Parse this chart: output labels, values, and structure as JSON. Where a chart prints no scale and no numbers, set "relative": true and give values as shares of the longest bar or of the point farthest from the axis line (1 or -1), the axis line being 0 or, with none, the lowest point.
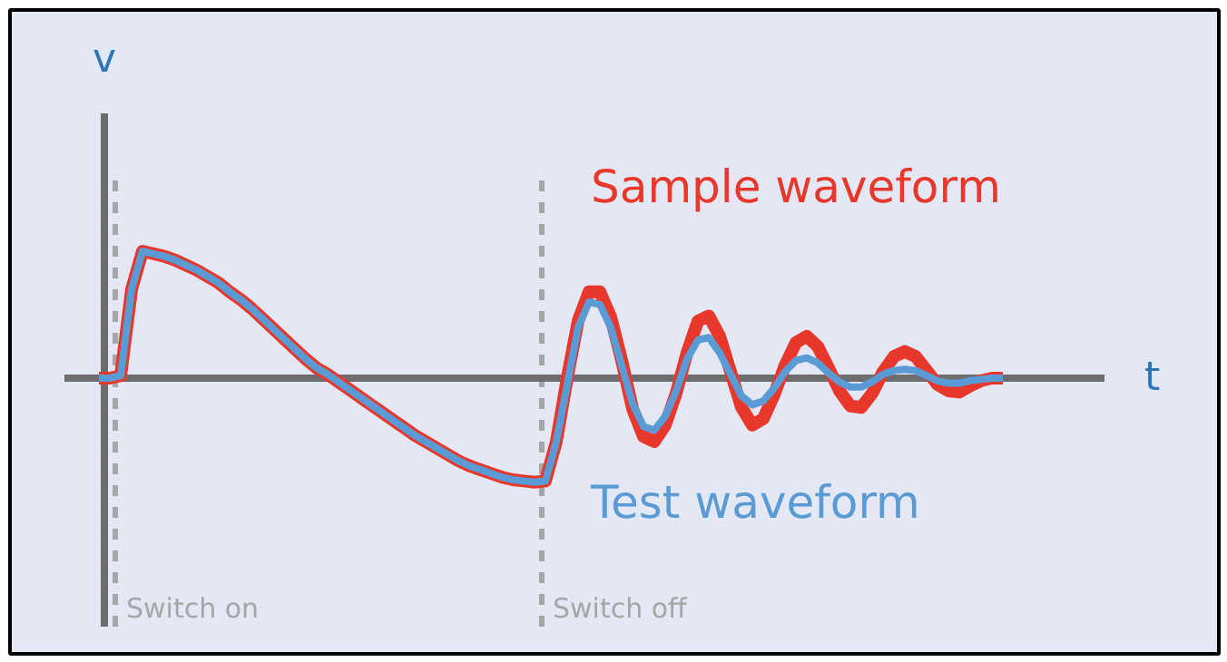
{
  "chart_data": {
    "type": "line",
    "relative": true,
    "xlabel": "t",
    "ylabel": "v",
    "line_style": "solid",
    "annotations": [
      "Switch on",
      "Switch off"
    ],
    "categories": [
      null,
      null,
      null,
      null,
      null,
      null,
      null,
      null,
      null,
      null,
      null,
      null,
      null,
      null,
      null,
      null,
      null,
      null,
      null,
      null,
      null,
      null,
      null,
      null,
      null,
      null,
      null,
      null,
      null,
      null,
      null,
      null,
      null,
      null,
      null,
      null,
      null,
      null,
      null,
      null,
      null,
      null,
      null,
      null,
      null,
      null,
      null,
      null,
      null,
      null,
      null,
      null,
      null,
      null,
      null,
      null,
      null,
      null,
      null,
      null,
      null,
      null,
      null,
      null,
      null,
      null,
      null,
      null,
      null,
      null,
      null,
      null,
      null,
      null,
      null,
      null,
      null,
      null,
      null,
      null,
      null,
      null,
      null,
      null
    ],
    "series": [
      {
        "name": "Sample waveform",
        "color": "#e8372b",
        "values": [
          0,
          0,
          0.02,
          0.7,
          1.0,
          0.98,
          0.96,
          0.93,
          0.89,
          0.85,
          0.8,
          0.75,
          0.68,
          0.62,
          0.55,
          0.47,
          0.39,
          0.31,
          0.23,
          0.15,
          0.08,
          0.03,
          -0.03,
          -0.09,
          -0.15,
          -0.21,
          -0.27,
          -0.33,
          -0.39,
          -0.45,
          -0.5,
          -0.55,
          -0.6,
          -0.65,
          -0.69,
          -0.72,
          -0.75,
          -0.78,
          -0.8,
          -0.81,
          -0.82,
          -0.81,
          -0.5,
          0,
          0.45,
          0.68,
          0.68,
          0.48,
          0.14,
          -0.24,
          -0.46,
          -0.5,
          -0.37,
          -0.12,
          0.2,
          0.45,
          0.49,
          0.33,
          0.05,
          -0.23,
          -0.37,
          -0.32,
          -0.13,
          0.1,
          0.28,
          0.33,
          0.25,
          0.08,
          -0.1,
          -0.22,
          -0.23,
          -0.12,
          0.05,
          0.17,
          0.21,
          0.17,
          0.06,
          -0.05,
          -0.1,
          -0.11,
          -0.06,
          -0.02,
          0,
          0
        ]
      },
      {
        "name": "Test waveform",
        "color": "#5b9bd5",
        "values": [
          0,
          0,
          0.02,
          0.7,
          1.0,
          0.98,
          0.96,
          0.93,
          0.89,
          0.85,
          0.8,
          0.75,
          0.68,
          0.62,
          0.55,
          0.47,
          0.39,
          0.31,
          0.23,
          0.15,
          0.08,
          0.03,
          -0.03,
          -0.09,
          -0.15,
          -0.21,
          -0.27,
          -0.33,
          -0.39,
          -0.45,
          -0.5,
          -0.55,
          -0.6,
          -0.65,
          -0.69,
          -0.72,
          -0.75,
          -0.78,
          -0.8,
          -0.81,
          -0.82,
          -0.81,
          -0.5,
          -0.05,
          0.4,
          0.6,
          0.58,
          0.4,
          0.1,
          -0.2,
          -0.38,
          -0.41,
          -0.3,
          -0.1,
          0.15,
          0.3,
          0.32,
          0.2,
          0.03,
          -0.14,
          -0.21,
          -0.18,
          -0.08,
          0.05,
          0.14,
          0.16,
          0.12,
          0.04,
          -0.03,
          -0.07,
          -0.07,
          -0.03,
          0.03,
          0.06,
          0.07,
          0.06,
          0.02,
          -0.02,
          -0.04,
          -0.04,
          -0.02,
          -0.01,
          0,
          0
        ]
      }
    ]
  }
}
